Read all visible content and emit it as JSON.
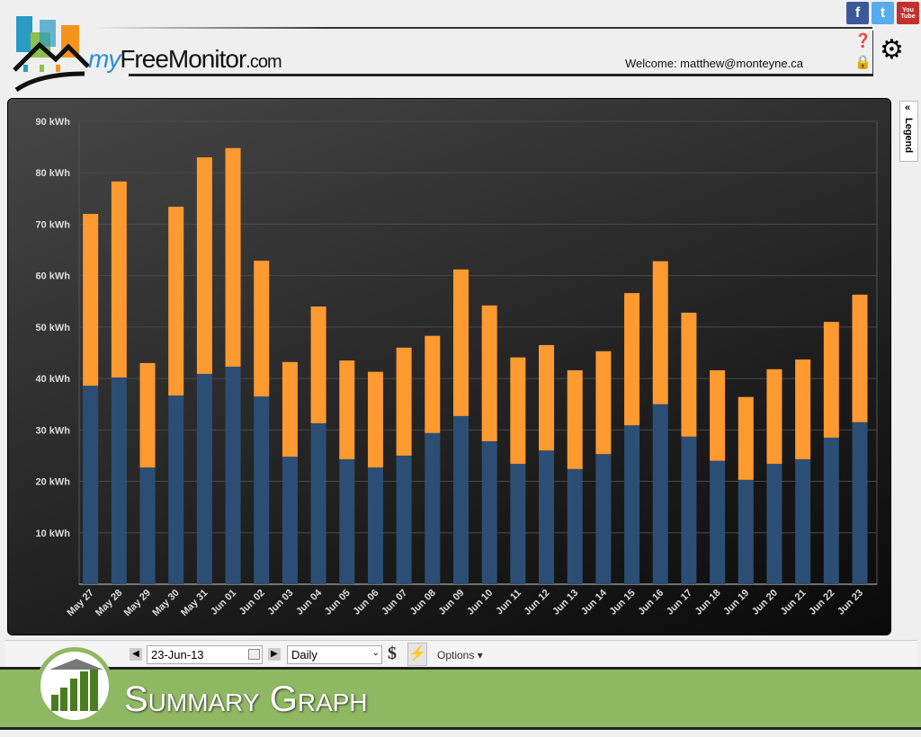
{
  "header": {
    "brand_my": "my",
    "brand_name": "FreeMonitor",
    "brand_tld": ".com",
    "welcome": "Welcome: matthew@monteyne.ca",
    "social": [
      {
        "label": "f",
        "color": "#3b5998"
      },
      {
        "label": "t",
        "color": "#55acee"
      },
      {
        "label": "You Tube",
        "color": "#c4302b"
      }
    ]
  },
  "legend": {
    "label": "Legend",
    "collapse": "«"
  },
  "toolbar": {
    "date": "23-Jun-13",
    "period": "Daily",
    "currency_symbol": "$",
    "energy_symbol": "⚡",
    "options": "Options ▾"
  },
  "page_title": "Summary Graph",
  "chart_data": {
    "type": "bar",
    "stacked": true,
    "grid": true,
    "ylim": [
      0,
      90
    ],
    "yticks": [
      "10 kWh",
      "20 kWh",
      "30 kWh",
      "40 kWh",
      "50 kWh",
      "60 kWh",
      "70 kWh",
      "80 kWh",
      "90 kWh"
    ],
    "categories": [
      "May 27",
      "May 28",
      "May 29",
      "May 30",
      "May 31",
      "Jun 01",
      "Jun 02",
      "Jun 03",
      "Jun 04",
      "Jun 05",
      "Jun 06",
      "Jun 07",
      "Jun 08",
      "Jun 09",
      "Jun 10",
      "Jun 11",
      "Jun 12",
      "Jun 13",
      "Jun 14",
      "Jun 15",
      "Jun 16",
      "Jun 17",
      "Jun 18",
      "Jun 19",
      "Jun 20",
      "Jun 21",
      "Jun 22",
      "Jun 23"
    ],
    "series": [
      {
        "color": "#2d4e74",
        "values": [
          38.6,
          40.2,
          22.7,
          36.7,
          40.9,
          42.3,
          36.5,
          24.8,
          31.3,
          24.3,
          22.7,
          25.0,
          29.4,
          32.7,
          27.8,
          23.4,
          26.0,
          22.4,
          25.3,
          30.9,
          35.0,
          28.7,
          24.0,
          20.3,
          23.4,
          24.3,
          28.5,
          31.5
        ]
      },
      {
        "color": "#ff9a30",
        "values": [
          33.4,
          38.1,
          20.3,
          36.7,
          42.1,
          42.5,
          26.4,
          18.4,
          22.7,
          19.2,
          18.6,
          21.0,
          18.9,
          28.5,
          26.4,
          20.7,
          20.5,
          19.2,
          20.0,
          25.7,
          27.8,
          24.1,
          17.6,
          16.1,
          18.4,
          19.4,
          22.5,
          24.8
        ]
      }
    ]
  }
}
